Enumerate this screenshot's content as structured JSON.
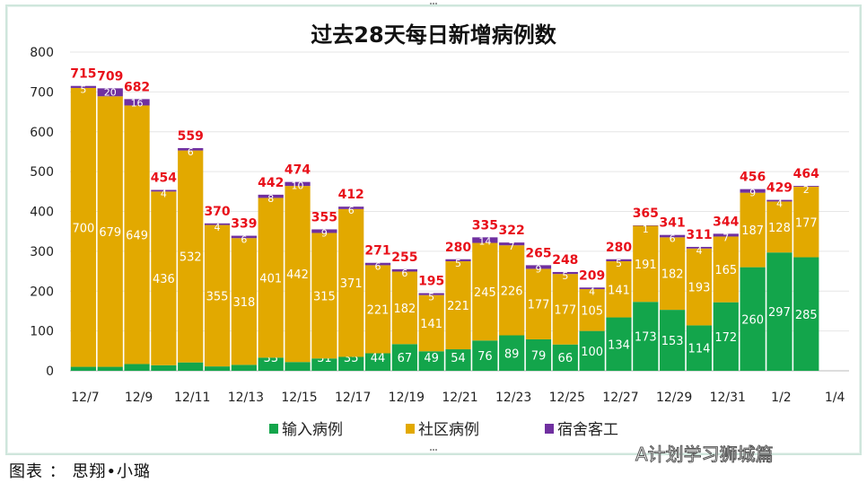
{
  "chart_data": {
    "type": "bar",
    "stacked": true,
    "title": "过去28天每日新增病例数",
    "xlabel": "",
    "ylabel": "",
    "ylim": [
      0,
      800
    ],
    "yticks": [
      0,
      100,
      200,
      300,
      400,
      500,
      600,
      700,
      800
    ],
    "grid": true,
    "legend_position": "bottom",
    "categories": [
      "12/7",
      "12/8",
      "12/9",
      "12/10",
      "12/11",
      "12/12",
      "12/13",
      "12/14",
      "12/15",
      "12/16",
      "12/17",
      "12/18",
      "12/19",
      "12/20",
      "12/21",
      "12/22",
      "12/23",
      "12/24",
      "12/25",
      "12/26",
      "12/27",
      "12/28",
      "12/29",
      "12/30",
      "12/31",
      "1/1",
      "1/2",
      "1/3"
    ],
    "xtick_labels": [
      "12/7",
      "12/9",
      "12/11",
      "12/13",
      "12/15",
      "12/17",
      "12/19",
      "12/21",
      "12/23",
      "12/25",
      "12/27",
      "12/29",
      "12/31",
      "1/2",
      "1/4"
    ],
    "series": [
      {
        "name": "输入病例",
        "color": "#13a54b",
        "values": [
          10,
          10,
          17,
          14,
          21,
          11,
          15,
          33,
          22,
          31,
          35,
          44,
          67,
          49,
          54,
          76,
          89,
          79,
          66,
          100,
          134,
          173,
          153,
          114,
          172,
          260,
          297,
          285
        ]
      },
      {
        "name": "社区病例",
        "color": "#e2a900",
        "values": [
          700,
          679,
          649,
          436,
          532,
          355,
          318,
          401,
          442,
          315,
          371,
          221,
          182,
          141,
          221,
          245,
          226,
          177,
          177,
          105,
          141,
          191,
          182,
          193,
          165,
          187,
          128,
          177
        ]
      },
      {
        "name": "宿舍客工",
        "color": "#7030a0",
        "values": [
          5,
          20,
          16,
          4,
          6,
          4,
          6,
          8,
          10,
          9,
          6,
          6,
          6,
          5,
          5,
          14,
          7,
          9,
          5,
          4,
          5,
          1,
          6,
          4,
          7,
          9,
          4,
          2
        ]
      }
    ],
    "totals": [
      715,
      709,
      682,
      454,
      559,
      370,
      339,
      442,
      474,
      355,
      412,
      271,
      255,
      195,
      280,
      335,
      322,
      265,
      248,
      209,
      280,
      365,
      341,
      311,
      344,
      456,
      429,
      464
    ],
    "total_label_color": "#e8101a"
  },
  "caption": "图表 ： 思翔•小璐",
  "watermark": "A计划学习狮城篇"
}
